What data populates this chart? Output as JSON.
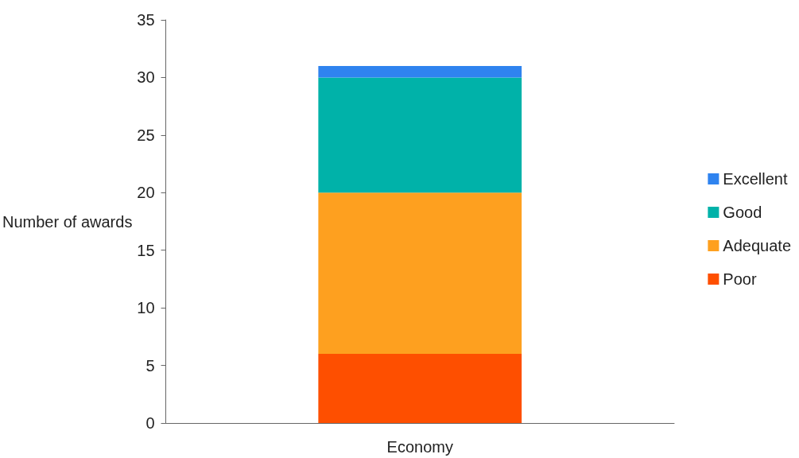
{
  "chart_data": {
    "type": "bar",
    "stacked": true,
    "ylabel": "Number of awards",
    "categories": [
      "Economy"
    ],
    "series": [
      {
        "name": "Poor",
        "color": "#fe4f00",
        "values": [
          6
        ]
      },
      {
        "name": "Adequate",
        "color": "#fea01f",
        "values": [
          14
        ]
      },
      {
        "name": "Good",
        "color": "#00b2a9",
        "values": [
          10
        ]
      },
      {
        "name": "Excellent",
        "color": "#2f83ef",
        "values": [
          1
        ]
      }
    ],
    "ylim": [
      0,
      35
    ],
    "yticks": [
      0,
      5,
      10,
      15,
      20,
      25,
      30,
      35
    ],
    "grid": false,
    "legend": "right"
  }
}
